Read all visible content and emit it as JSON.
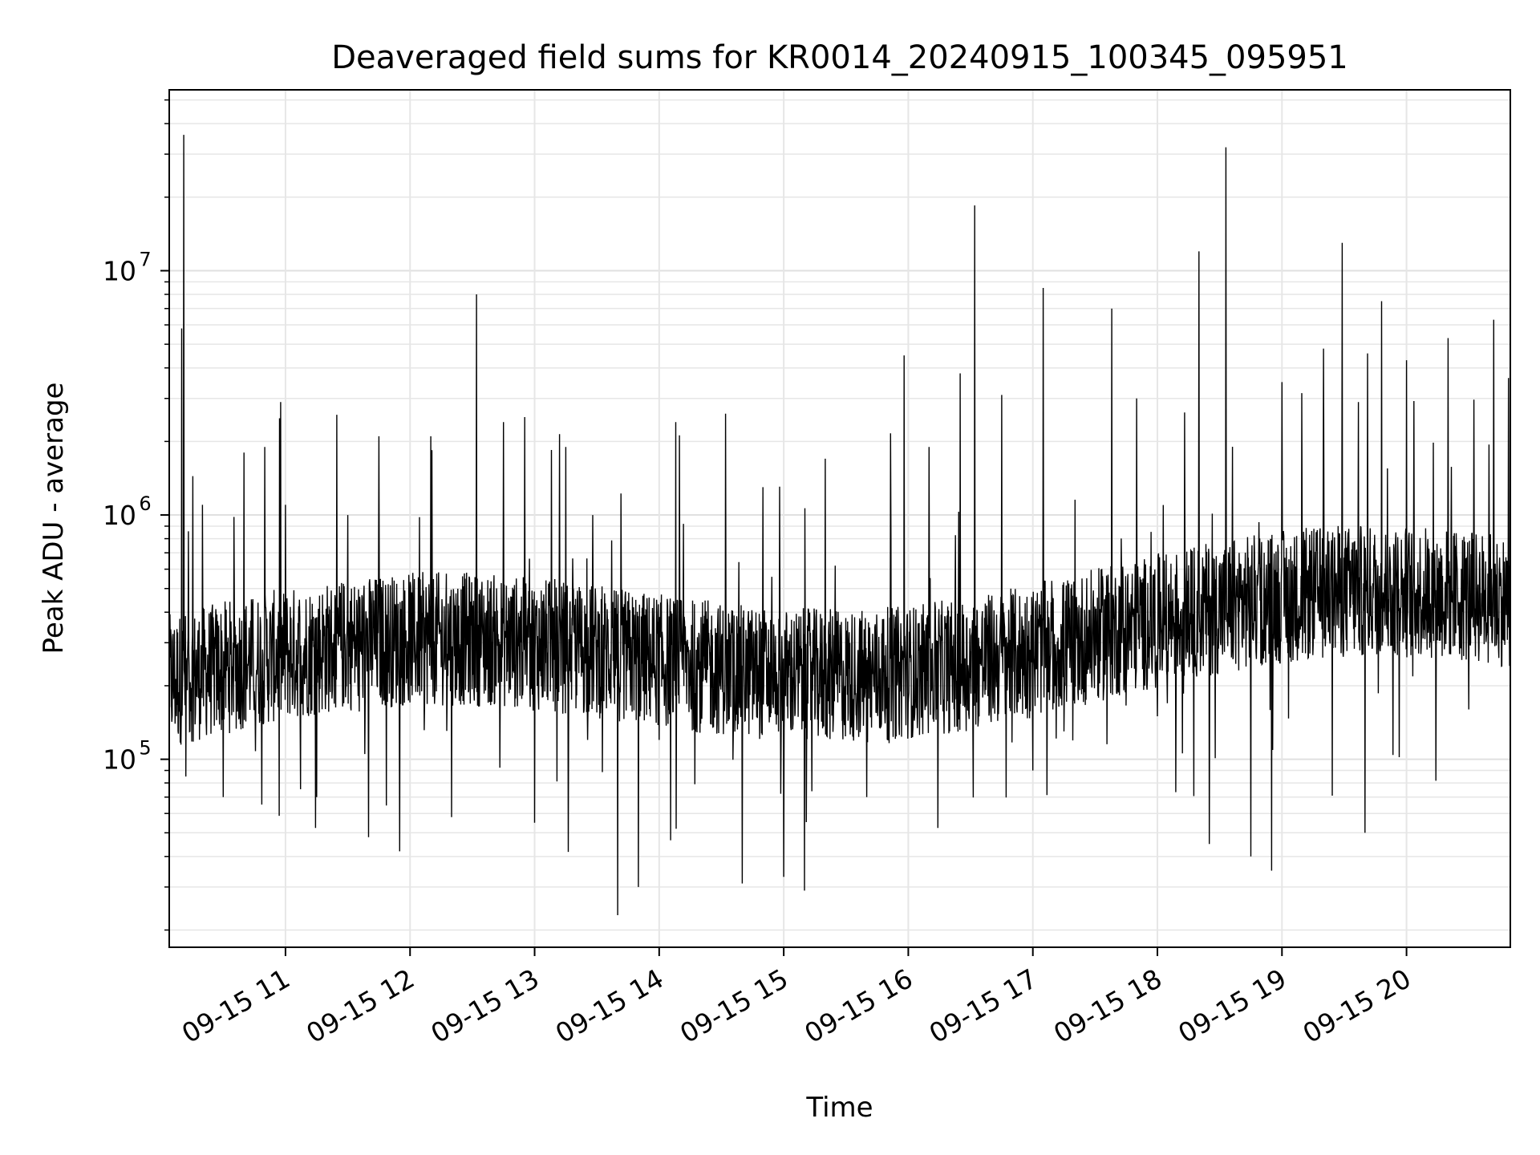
{
  "chart_data": {
    "type": "line",
    "title": "Deaveraged field sums for KR0014_20240915_100345_095951",
    "xlabel": "Time",
    "ylabel": "Peak ADU - average",
    "yscale": "log",
    "grid": true,
    "xlim": [
      "2024-09-15 10:04",
      "2024-09-15 20:50"
    ],
    "ylim": [
      17000,
      55000000
    ],
    "xticks": [
      {
        "t": "2024-09-15 11:00",
        "label": "09-15 11"
      },
      {
        "t": "2024-09-15 12:00",
        "label": "09-15 12"
      },
      {
        "t": "2024-09-15 13:00",
        "label": "09-15 13"
      },
      {
        "t": "2024-09-15 14:00",
        "label": "09-15 14"
      },
      {
        "t": "2024-09-15 15:00",
        "label": "09-15 15"
      },
      {
        "t": "2024-09-15 16:00",
        "label": "09-15 16"
      },
      {
        "t": "2024-09-15 17:00",
        "label": "09-15 17"
      },
      {
        "t": "2024-09-15 18:00",
        "label": "09-15 18"
      },
      {
        "t": "2024-09-15 19:00",
        "label": "09-15 19"
      },
      {
        "t": "2024-09-15 20:00",
        "label": "09-15 20"
      }
    ],
    "yticks": [
      {
        "value": 100000,
        "base": "10",
        "exp": "5"
      },
      {
        "value": 1000000,
        "base": "10",
        "exp": "6"
      },
      {
        "value": 10000000,
        "base": "10",
        "exp": "7"
      }
    ],
    "line_color": "#000000",
    "series": [
      {
        "points": [
          [
            "2024-09-15 10:04",
            310000
          ],
          [
            "2024-09-15 10:10",
            5800000
          ],
          [
            "2024-09-15 10:11",
            36000000
          ],
          [
            "2024-09-15 10:12",
            85000
          ],
          [
            "2024-09-15 10:20",
            1100000
          ],
          [
            "2024-09-15 10:30",
            70000
          ],
          [
            "2024-09-15 10:40",
            1800000
          ],
          [
            "2024-09-15 10:50",
            1900000
          ],
          [
            "2024-09-15 11:00",
            1100000
          ],
          [
            "2024-09-15 11:15",
            70000
          ],
          [
            "2024-09-15 11:30",
            1000000
          ],
          [
            "2024-09-15 11:40",
            48000
          ],
          [
            "2024-09-15 11:45",
            2100000
          ],
          [
            "2024-09-15 11:55",
            42000
          ],
          [
            "2024-09-15 12:10",
            2100000
          ],
          [
            "2024-09-15 12:20",
            58000
          ],
          [
            "2024-09-15 12:32",
            8000000
          ],
          [
            "2024-09-15 12:45",
            2400000
          ],
          [
            "2024-09-15 13:00",
            55000
          ],
          [
            "2024-09-15 13:15",
            1900000
          ],
          [
            "2024-09-15 13:28",
            1000000
          ],
          [
            "2024-09-15 13:38",
            270000
          ],
          [
            "2024-09-15 13:40",
            23000
          ],
          [
            "2024-09-15 13:50",
            30000
          ],
          [
            "2024-09-15 14:00",
            120000
          ],
          [
            "2024-09-15 14:08",
            2400000
          ],
          [
            "2024-09-15 14:20",
            140000
          ],
          [
            "2024-09-15 14:32",
            2600000
          ],
          [
            "2024-09-15 14:40",
            31000
          ],
          [
            "2024-09-15 14:50",
            1300000
          ],
          [
            "2024-09-15 15:00",
            33000
          ],
          [
            "2024-09-15 15:10",
            29000
          ],
          [
            "2024-09-15 15:20",
            1700000
          ],
          [
            "2024-09-15 15:40",
            70000
          ],
          [
            "2024-09-15 15:58",
            4500000
          ],
          [
            "2024-09-15 16:10",
            1900000
          ],
          [
            "2024-09-15 16:25",
            3800000
          ],
          [
            "2024-09-15 16:32",
            18500000
          ],
          [
            "2024-09-15 16:45",
            3100000
          ],
          [
            "2024-09-15 17:00",
            90000
          ],
          [
            "2024-09-15 17:05",
            8500000
          ],
          [
            "2024-09-15 17:15",
            130000
          ],
          [
            "2024-09-15 17:38",
            7000000
          ],
          [
            "2024-09-15 17:50",
            3000000
          ],
          [
            "2024-09-15 18:00",
            150000
          ],
          [
            "2024-09-15 18:20",
            12000000
          ],
          [
            "2024-09-15 18:25",
            45000
          ],
          [
            "2024-09-15 18:33",
            32000000
          ],
          [
            "2024-09-15 18:45",
            40000
          ],
          [
            "2024-09-15 18:55",
            35000
          ],
          [
            "2024-09-15 19:00",
            3500000
          ],
          [
            "2024-09-15 19:20",
            4800000
          ],
          [
            "2024-09-15 19:29",
            13000000
          ],
          [
            "2024-09-15 19:40",
            50000
          ],
          [
            "2024-09-15 19:48",
            7500000
          ],
          [
            "2024-09-15 20:00",
            4300000
          ],
          [
            "2024-09-15 20:20",
            5300000
          ],
          [
            "2024-09-15 20:30",
            160000
          ],
          [
            "2024-09-15 20:42",
            6300000
          ],
          [
            "2024-09-15 20:50",
            550000
          ]
        ]
      }
    ]
  }
}
